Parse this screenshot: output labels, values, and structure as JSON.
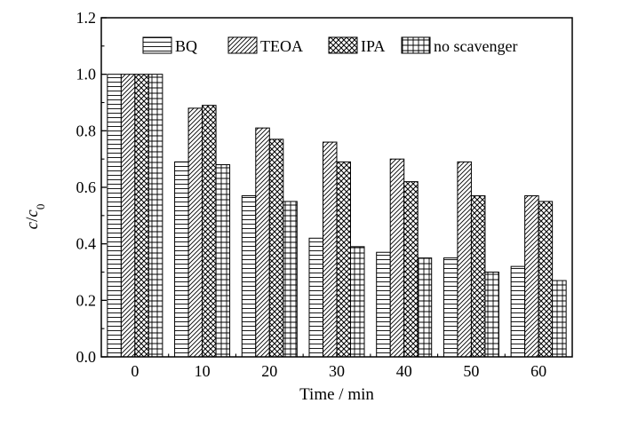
{
  "chart_data": {
    "type": "bar",
    "xlabel": "Time / min",
    "ylabel_main": "c",
    "ylabel_sep": "/",
    "ylabel_c": "c",
    "ylabel_sub": "0",
    "categories": [
      "0",
      "10",
      "20",
      "30",
      "40",
      "50",
      "60"
    ],
    "ylim": [
      0.0,
      1.2
    ],
    "yticks": [
      "0.0",
      "0.2",
      "0.4",
      "0.6",
      "0.8",
      "1.0",
      "1.2"
    ],
    "legend_position": "top-right",
    "grid": false,
    "series": [
      {
        "name": "BQ",
        "pattern": "horizontal-lines",
        "values": [
          1.0,
          0.69,
          0.57,
          0.42,
          0.37,
          0.35,
          0.32
        ]
      },
      {
        "name": "TEOA",
        "pattern": "diagonal-lines",
        "values": [
          1.0,
          0.88,
          0.81,
          0.76,
          0.7,
          0.69,
          0.57
        ]
      },
      {
        "name": "IPA",
        "pattern": "crosshatch",
        "values": [
          1.0,
          0.89,
          0.77,
          0.69,
          0.62,
          0.57,
          0.55
        ]
      },
      {
        "name": "no scavenger",
        "pattern": "grid",
        "values": [
          1.0,
          0.68,
          0.55,
          0.39,
          0.35,
          0.3,
          0.27
        ]
      }
    ]
  }
}
